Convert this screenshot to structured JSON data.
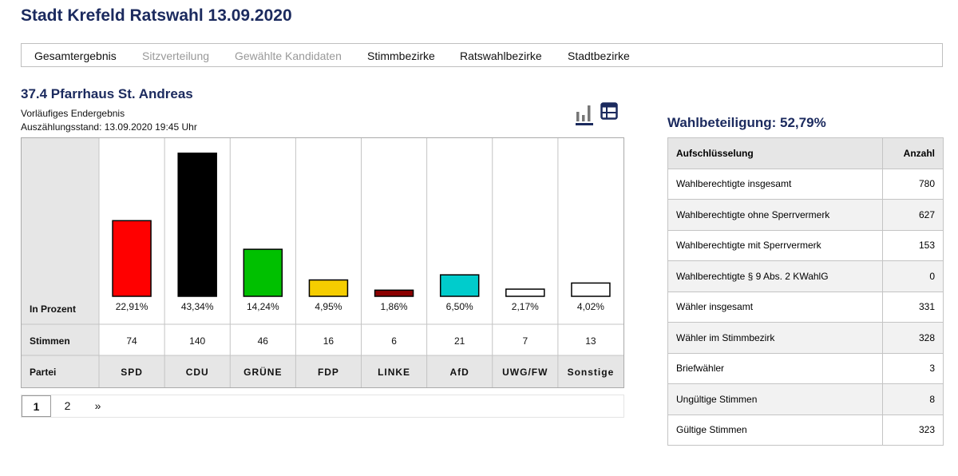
{
  "page_title": "Stadt Krefeld Ratswahl 13.09.2020",
  "nav": [
    {
      "label": "Gesamtergebnis",
      "enabled": true
    },
    {
      "label": "Sitzverteilung",
      "enabled": false
    },
    {
      "label": "Gewählte Kandidaten",
      "enabled": false
    },
    {
      "label": "Stimmbezirke",
      "enabled": true
    },
    {
      "label": "Ratswahlbezirke",
      "enabled": true
    },
    {
      "label": "Stadtbezirke",
      "enabled": true
    }
  ],
  "district": {
    "title": "37.4 Pfarrhaus St. Andreas",
    "status": "Vorläufiges Endergebnis",
    "count_status": "Auszählungsstand: 13.09.2020 19:45 Uhr"
  },
  "icons": {
    "chart_view": "bar-chart-icon",
    "table_view": "table-icon"
  },
  "chart_data": {
    "type": "bar",
    "row_labels": {
      "percent": "In Prozent",
      "votes": "Stimmen",
      "party": "Partei"
    },
    "categories": [
      "SPD",
      "CDU",
      "GRÜNE",
      "FDP",
      "LINKE",
      "AfD",
      "UWG/FW",
      "Sonstige"
    ],
    "values": [
      22.91,
      43.34,
      14.24,
      4.95,
      1.86,
      6.5,
      2.17,
      4.02
    ],
    "value_labels": [
      "22,91%",
      "43,34%",
      "14,24%",
      "4,95%",
      "1,86%",
      "6,50%",
      "2,17%",
      "4,02%"
    ],
    "votes": [
      "74",
      "140",
      "46",
      "16",
      "6",
      "21",
      "7",
      "13"
    ],
    "colors": [
      "#ff0000",
      "#000000",
      "#00c000",
      "#f5cd00",
      "#8b0000",
      "#00cccc",
      "#ffffff",
      "#ffffff"
    ],
    "ylim": [
      0,
      45
    ]
  },
  "pagination": {
    "pages": [
      "1",
      "2"
    ],
    "current": "1",
    "next": "»"
  },
  "turnout": {
    "title": "Wahlbeteiligung: 52,79%",
    "col_label": "Aufschlüsselung",
    "col_count": "Anzahl",
    "rows": [
      {
        "label": "Wahlberechtigte insgesamt",
        "value": "780"
      },
      {
        "label": "Wahlberechtigte ohne Sperrvermerk",
        "value": "627"
      },
      {
        "label": "Wahlberechtigte mit Sperrvermerk",
        "value": "153"
      },
      {
        "label": "Wahlberechtigte § 9 Abs. 2 KWahlG",
        "value": "0"
      },
      {
        "label": "Wähler insgesamt",
        "value": "331"
      },
      {
        "label": "Wähler im Stimmbezirk",
        "value": "328"
      },
      {
        "label": "Briefwähler",
        "value": "3"
      },
      {
        "label": "Ungültige Stimmen",
        "value": "8"
      },
      {
        "label": "Gültige Stimmen",
        "value": "323"
      }
    ]
  }
}
